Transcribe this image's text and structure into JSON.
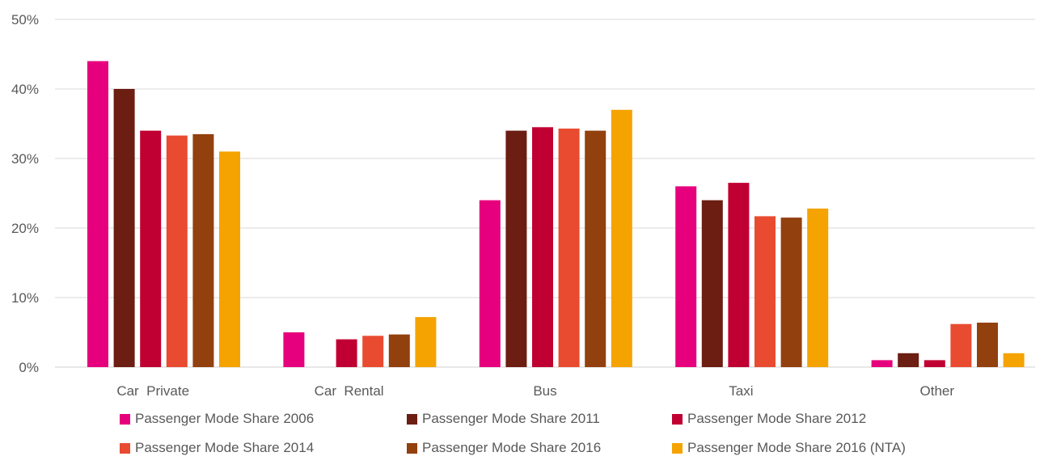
{
  "chart_data": {
    "type": "bar",
    "categories": [
      "Car  Private",
      "Car  Rental",
      "Bus",
      "Taxi",
      "Other"
    ],
    "ylim": [
      0,
      50
    ],
    "yticks": [
      0,
      10,
      20,
      30,
      40,
      50
    ],
    "ytick_labels": [
      "0%",
      "10%",
      "20%",
      "30%",
      "40%",
      "50%"
    ],
    "grid": true,
    "legend_position": "bottom",
    "series": [
      {
        "name": "Passenger Mode Share 2006",
        "color": "#E6007E",
        "values": [
          44,
          5,
          24,
          26,
          1
        ]
      },
      {
        "name": "Passenger Mode Share 2011",
        "color": "#6B1E11",
        "values": [
          40,
          0,
          34,
          24,
          2
        ]
      },
      {
        "name": "Passenger Mode Share 2012",
        "color": "#C00032",
        "values": [
          34,
          4,
          34.5,
          26.5,
          1
        ]
      },
      {
        "name": "Passenger Mode Share 2014",
        "color": "#E84B30",
        "values": [
          33.3,
          4.5,
          34.3,
          21.7,
          6.2
        ]
      },
      {
        "name": "Passenger Mode Share 2016",
        "color": "#92400E",
        "values": [
          33.5,
          4.7,
          34,
          21.5,
          6.4
        ]
      },
      {
        "name": "Passenger Mode Share 2016 (NTA)",
        "color": "#F5A300",
        "values": [
          31,
          7.2,
          37,
          22.8,
          2
        ]
      }
    ]
  }
}
